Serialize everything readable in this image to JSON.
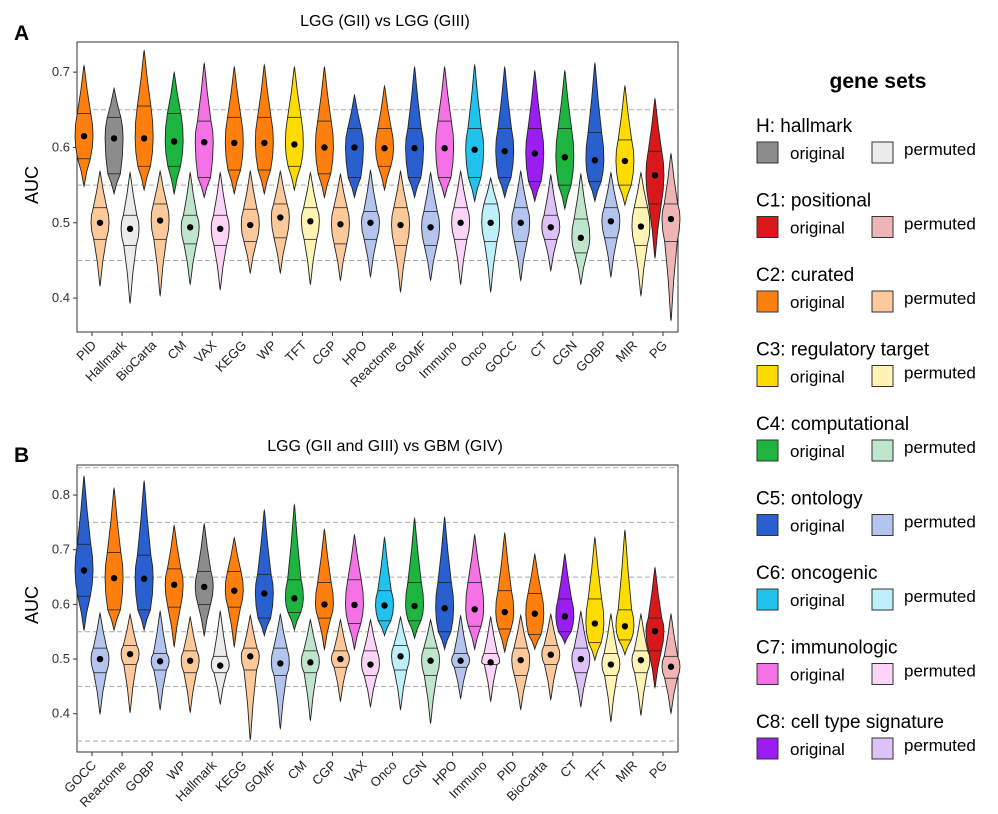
{
  "legend": {
    "title": "gene sets",
    "original_label": "original",
    "permuted_label": "permuted",
    "groups": [
      {
        "label": "H: hallmark",
        "original_color": "#8c8c8c",
        "permuted_color": "#ececec"
      },
      {
        "label": "C1: positional",
        "original_color": "#d7191c",
        "permuted_color": "#efb5b4"
      },
      {
        "label": "C2: curated",
        "original_color": "#ff7f0e",
        "permuted_color": "#fdc99a"
      },
      {
        "label": "C3: regulatory target",
        "original_color": "#ffdc00",
        "permuted_color": "#fff4b3"
      },
      {
        "label": "C4: computational",
        "original_color": "#1db53f",
        "permuted_color": "#bfe6cc"
      },
      {
        "label": "C5: ontology",
        "original_color": "#2a5fd0",
        "permuted_color": "#b3c4ee"
      },
      {
        "label": "C6: oncogenic",
        "original_color": "#22c2ef",
        "permuted_color": "#bdf0fb"
      },
      {
        "label": "C7: immunologic",
        "original_color": "#f472e6",
        "permuted_color": "#fbd4f7"
      },
      {
        "label": "C8: cell type signature",
        "original_color": "#9a1df2",
        "permuted_color": "#dcc2f8"
      }
    ]
  },
  "chart_data": [
    {
      "type": "violin",
      "panel": "A",
      "title": "LGG (GII) vs LGG (GIII)",
      "xlabel": "",
      "ylabel": "AUC",
      "ylim": [
        0.355,
        0.74
      ],
      "yticks": [
        0.4,
        0.5,
        0.6,
        0.7
      ],
      "reference_lines": [
        0.45,
        0.55,
        0.65
      ],
      "categories": [
        "PID",
        "Hallmark",
        "BioCarta",
        "CM",
        "VAX",
        "KEGG",
        "WP",
        "TFT",
        "CGP",
        "HPO",
        "Reactome",
        "GOMF",
        "Immuno",
        "Onco",
        "GOCC",
        "CT",
        "CGN",
        "GOBP",
        "MIR",
        "PG"
      ],
      "collections": [
        "C2",
        "H",
        "C2",
        "C4",
        "C7",
        "C2",
        "C2",
        "C3",
        "C2",
        "C5",
        "C2",
        "C5",
        "C7",
        "C6",
        "C5",
        "C8",
        "C4",
        "C5",
        "C3",
        "C1"
      ],
      "series": [
        {
          "name": "original",
          "min": [
            0.55,
            0.54,
            0.545,
            0.54,
            0.535,
            0.54,
            0.54,
            0.545,
            0.535,
            0.535,
            0.545,
            0.535,
            0.535,
            0.53,
            0.535,
            0.53,
            0.52,
            0.53,
            0.525,
            0.455
          ],
          "q1": [
            0.585,
            0.565,
            0.575,
            0.575,
            0.56,
            0.57,
            0.57,
            0.575,
            0.565,
            0.56,
            0.575,
            0.56,
            0.56,
            0.56,
            0.56,
            0.555,
            0.55,
            0.555,
            0.55,
            0.525
          ],
          "median": [
            0.615,
            0.612,
            0.612,
            0.608,
            0.607,
            0.606,
            0.606,
            0.604,
            0.6,
            0.6,
            0.599,
            0.599,
            0.599,
            0.597,
            0.595,
            0.592,
            0.587,
            0.583,
            0.582,
            0.563
          ],
          "q3": [
            0.645,
            0.64,
            0.655,
            0.645,
            0.635,
            0.64,
            0.64,
            0.64,
            0.635,
            0.625,
            0.625,
            0.625,
            0.635,
            0.625,
            0.625,
            0.625,
            0.625,
            0.62,
            0.61,
            0.595
          ],
          "max": [
            0.707,
            0.677,
            0.727,
            0.698,
            0.71,
            0.705,
            0.708,
            0.705,
            0.705,
            0.668,
            0.68,
            0.705,
            0.705,
            0.708,
            0.705,
            0.7,
            0.7,
            0.71,
            0.68,
            0.663
          ]
        },
        {
          "name": "permuted",
          "min": [
            0.418,
            0.395,
            0.405,
            0.42,
            0.413,
            0.435,
            0.435,
            0.42,
            0.425,
            0.43,
            0.41,
            0.425,
            0.42,
            0.41,
            0.425,
            0.438,
            0.42,
            0.43,
            0.405,
            0.372
          ],
          "q1": [
            0.478,
            0.47,
            0.478,
            0.472,
            0.47,
            0.475,
            0.48,
            0.478,
            0.472,
            0.478,
            0.47,
            0.47,
            0.478,
            0.475,
            0.475,
            0.478,
            0.46,
            0.48,
            0.47,
            0.475
          ],
          "median": [
            0.5,
            0.492,
            0.503,
            0.494,
            0.492,
            0.497,
            0.507,
            0.502,
            0.498,
            0.5,
            0.497,
            0.494,
            0.5,
            0.5,
            0.5,
            0.494,
            0.48,
            0.502,
            0.495,
            0.505
          ],
          "q3": [
            0.52,
            0.51,
            0.525,
            0.51,
            0.51,
            0.518,
            0.525,
            0.52,
            0.52,
            0.515,
            0.52,
            0.515,
            0.52,
            0.525,
            0.52,
            0.51,
            0.505,
            0.52,
            0.52,
            0.525
          ],
          "max": [
            0.567,
            0.565,
            0.567,
            0.565,
            0.565,
            0.567,
            0.567,
            0.565,
            0.563,
            0.568,
            0.567,
            0.565,
            0.567,
            0.558,
            0.567,
            0.562,
            0.563,
            0.565,
            0.565,
            0.59
          ]
        }
      ]
    },
    {
      "type": "violin",
      "panel": "B",
      "title": "LGG (GII and GIII) vs GBM (GIV)",
      "xlabel": "",
      "ylabel": "AUC",
      "ylim": [
        0.33,
        0.855
      ],
      "yticks": [
        0.4,
        0.5,
        0.6,
        0.7,
        0.8
      ],
      "reference_lines": [
        0.35,
        0.45,
        0.55,
        0.65,
        0.75,
        0.85
      ],
      "categories": [
        "GOCC",
        "Reactome",
        "GOBP",
        "WP",
        "Hallmark",
        "KEGG",
        "GOMF",
        "CM",
        "CGP",
        "VAX",
        "Onco",
        "CGN",
        "HPO",
        "Immuno",
        "PID",
        "BioCarta",
        "CT",
        "TFT",
        "MIR",
        "PG"
      ],
      "collections": [
        "C5",
        "C2",
        "C5",
        "C2",
        "H",
        "C2",
        "C5",
        "C4",
        "C2",
        "C7",
        "C6",
        "C4",
        "C5",
        "C7",
        "C2",
        "C2",
        "C8",
        "C3",
        "C3",
        "C1"
      ],
      "series": [
        {
          "name": "original",
          "min": [
            0.555,
            0.555,
            0.555,
            0.525,
            0.545,
            0.525,
            0.545,
            0.555,
            0.52,
            0.52,
            0.545,
            0.54,
            0.52,
            0.52,
            0.515,
            0.52,
            0.53,
            0.5,
            0.51,
            0.45
          ],
          "q1": [
            0.615,
            0.59,
            0.59,
            0.595,
            0.6,
            0.595,
            0.575,
            0.585,
            0.575,
            0.565,
            0.57,
            0.57,
            0.55,
            0.56,
            0.555,
            0.545,
            0.55,
            0.53,
            0.535,
            0.515
          ],
          "median": [
            0.662,
            0.648,
            0.647,
            0.636,
            0.632,
            0.625,
            0.62,
            0.611,
            0.6,
            0.599,
            0.598,
            0.597,
            0.593,
            0.591,
            0.586,
            0.583,
            0.578,
            0.565,
            0.56,
            0.551
          ],
          "q3": [
            0.71,
            0.695,
            0.69,
            0.665,
            0.66,
            0.66,
            0.655,
            0.645,
            0.64,
            0.645,
            0.625,
            0.64,
            0.64,
            0.64,
            0.625,
            0.62,
            0.61,
            0.61,
            0.59,
            0.575
          ],
          "max": [
            0.832,
            0.81,
            0.823,
            0.742,
            0.745,
            0.72,
            0.77,
            0.78,
            0.735,
            0.725,
            0.72,
            0.755,
            0.757,
            0.725,
            0.728,
            0.69,
            0.69,
            0.72,
            0.733,
            0.665
          ]
        },
        {
          "name": "permuted",
          "min": [
            0.402,
            0.405,
            0.41,
            0.405,
            0.42,
            0.355,
            0.375,
            0.39,
            0.425,
            0.415,
            0.41,
            0.385,
            0.43,
            0.425,
            0.41,
            0.428,
            0.415,
            0.388,
            0.4,
            0.403
          ],
          "q1": [
            0.475,
            0.49,
            0.48,
            0.475,
            0.475,
            0.48,
            0.47,
            0.475,
            0.485,
            0.47,
            0.48,
            0.47,
            0.485,
            0.49,
            0.47,
            0.49,
            0.475,
            0.47,
            0.475,
            0.465
          ],
          "median": [
            0.5,
            0.509,
            0.496,
            0.497,
            0.488,
            0.505,
            0.492,
            0.494,
            0.5,
            0.49,
            0.505,
            0.497,
            0.497,
            0.494,
            0.498,
            0.508,
            0.5,
            0.49,
            0.498,
            0.486
          ],
          "q3": [
            0.52,
            0.525,
            0.51,
            0.515,
            0.505,
            0.52,
            0.52,
            0.515,
            0.515,
            0.515,
            0.525,
            0.52,
            0.51,
            0.51,
            0.52,
            0.525,
            0.52,
            0.51,
            0.515,
            0.505
          ],
          "max": [
            0.582,
            0.58,
            0.585,
            0.575,
            0.585,
            0.578,
            0.58,
            0.57,
            0.57,
            0.57,
            0.575,
            0.57,
            0.577,
            0.575,
            0.578,
            0.58,
            0.585,
            0.58,
            0.58,
            0.58
          ]
        }
      ]
    }
  ]
}
